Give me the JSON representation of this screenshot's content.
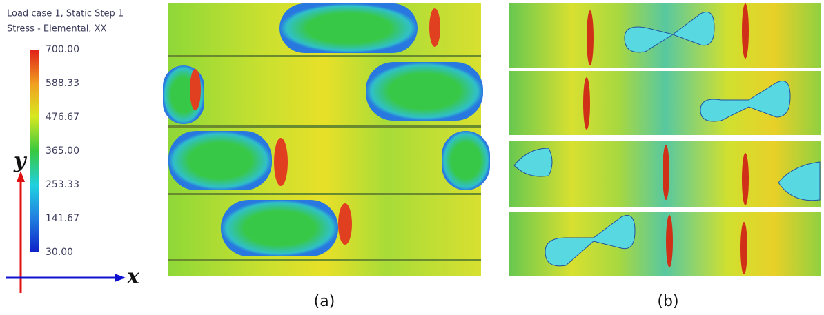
{
  "legend": {
    "title": [
      "Load case 1, Static Step 1",
      "Stress - Elemental, XX"
    ],
    "ticks": [
      "700.00",
      "588.33",
      "476.67",
      "365.00",
      "253.33",
      "141.67",
      "30.00"
    ]
  },
  "axes": {
    "y": "y",
    "x": "x"
  },
  "panels": [
    {
      "label": "(a)"
    },
    {
      "label": "(b)"
    }
  ]
}
